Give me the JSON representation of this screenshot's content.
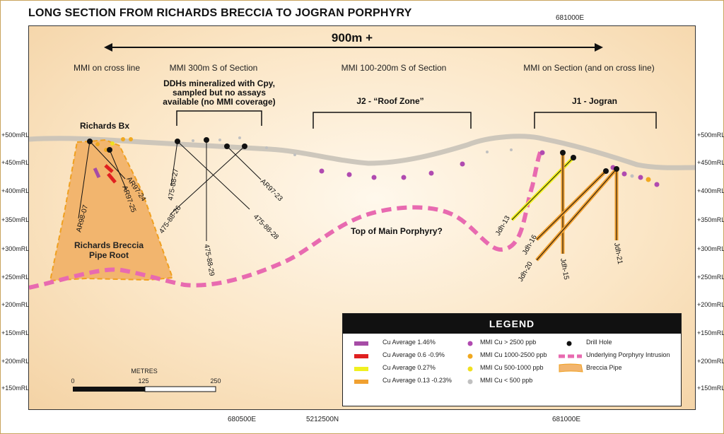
{
  "title": "LONG SECTION FROM RICHARDS BRECCIA TO JOGRAN PORPHYRY",
  "coords": {
    "top_easting": "681000E",
    "bottom": [
      "680500E",
      "5212500N",
      "681000E"
    ]
  },
  "elevations_left": [
    "+500mRL",
    "+450mRL",
    "+400mRL",
    "+350mRL",
    "+300mRL",
    "+250mRL",
    "+200mRL",
    "+150mRL",
    "+100mRL",
    "+50mRL",
    "+200mRL",
    "+150mRL"
  ],
  "elevations_right": [
    "+500mRL",
    "+450mRL",
    "+400mRL",
    "+350mRL",
    "+300mRL",
    "+250mRL",
    "+200mRL",
    "+150mRL",
    "+100mRL",
    "+50mRL",
    "+200mRL",
    "+150mRL"
  ],
  "section": {
    "span_label": "900m +",
    "zones": [
      "MMI on cross line",
      "MMI 300m S of Section",
      "MMI 100-200m S of Section",
      "MMI on Section (and on cross line)"
    ],
    "ddh_note": [
      "DDHs mineralized with Cpy,",
      "sampled but no assays",
      "available (no MMI coverage)"
    ],
    "target_j2": "J2 - “Roof Zone”",
    "target_j1": "J1 - Jogran",
    "richards_bx": "Richards Bx",
    "pipe_root": [
      "Richards Breccia",
      "Pipe Root"
    ],
    "porphyry_label": "Top of Main Porphyry?",
    "holes": [
      "AR98-07",
      "AR97-25",
      "AR97-24",
      "475-88-27",
      "475-88-26",
      "475-88-29",
      "475-88-28",
      "AR97-23",
      "Jdh-13",
      "Jdh-16",
      "Jdh-20",
      "Jdh-15",
      "Jdh-21"
    ]
  },
  "scale_bar": {
    "title": "METRES",
    "ticks": [
      "0",
      "125",
      "250"
    ]
  },
  "legend": {
    "title": "LEGEND",
    "cu_items": [
      "Cu Average 1.46%",
      "Cu Average 0.6 -0.9%",
      "Cu Average 0.27%",
      "Cu Average 0.13 -0.23%"
    ],
    "cu_colors": [
      "#a64ca6",
      "#e02020",
      "#f0f020",
      "#f0a030"
    ],
    "mmi_items": [
      "MMI Cu > 2500 ppb",
      "MMI Cu 1000-2500 ppb",
      "MMI Cu 500-1000 ppb",
      "MMI Cu < 500 ppb"
    ],
    "mmi_colors": [
      "#b04ab0",
      "#f0a820",
      "#f0e020",
      "#c0c0c0"
    ],
    "other_items": [
      "Drill Hole",
      "Underlying Porphyry Intrusion",
      "Breccia Pipe"
    ],
    "colors": {
      "porphyry": "#e86ab0",
      "breccia": "#f2b56e",
      "drill": "#111111"
    }
  }
}
